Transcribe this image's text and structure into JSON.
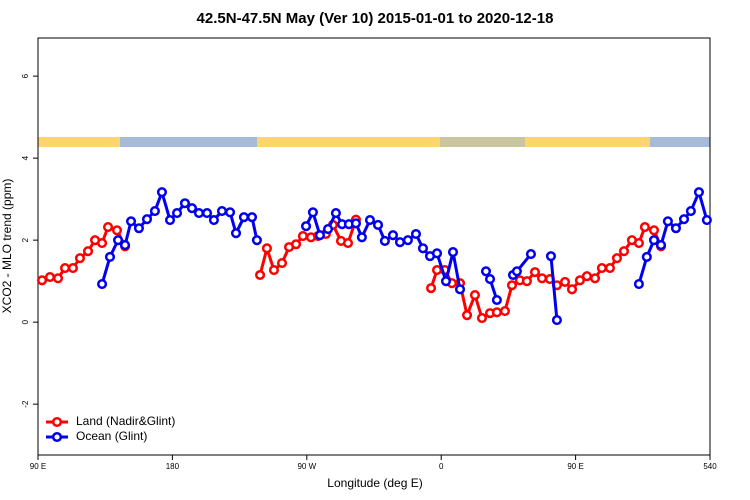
{
  "chart_data": {
    "type": "line",
    "title": "42.5N-47.5N May (Ver 10)   2015-01-01 to 2020-12-18",
    "x_label": "Longitude (deg E)",
    "y_label": "XCO2 - MLO trend (ppm)",
    "xlim": [
      90,
      540
    ],
    "xticks": [
      {
        "value": 90,
        "label": "90 E"
      },
      180,
      {
        "value": 270,
        "label": "90 W"
      },
      {
        "value": 360,
        "label": "0"
      },
      {
        "value": 450,
        "label": "90 E"
      },
      540
    ],
    "ylim": [
      -3.24,
      6.93
    ],
    "yticks": [
      -2,
      0,
      2,
      4,
      6
    ],
    "legend": "bottom-left",
    "series": [
      {
        "name": "Land (Nadir&Glint)",
        "color": "#ff0000",
        "x": [
          92.7,
          98.0,
          103.4,
          108.1,
          113.4,
          118.1,
          123.5,
          128.2,
          132.9,
          136.9,
          142.9,
          148.3,
          null,
          238.7,
          243.3,
          248.0,
          253.4,
          258.1,
          262.8,
          267.4,
          272.8,
          277.5,
          282.8,
          287.5,
          292.9,
          297.6,
          302.9,
          null,
          353.2,
          357.2,
          362.5,
          367.2,
          372.6,
          377.3,
          382.6,
          387.3,
          392.7,
          397.3,
          402.7,
          407.4,
          412.7,
          417.4,
          422.8,
          427.5,
          432.8,
          437.5,
          442.9,
          447.6,
          452.9,
          457.6,
          463.0,
          467.6,
          473.0,
          477.7,
          482.4,
          487.7,
          492.4,
          496.4,
          502.5,
          507.2
        ],
        "values": [
          1.02,
          1.1,
          1.07,
          1.32,
          1.32,
          1.56,
          1.73,
          2.0,
          1.93,
          2.32,
          2.24,
          1.85,
          null,
          1.15,
          1.8,
          1.27,
          1.44,
          1.83,
          1.9,
          2.1,
          2.07,
          2.1,
          2.15,
          2.37,
          1.98,
          1.93,
          2.5,
          null,
          0.83,
          1.27,
          1.27,
          0.95,
          0.95,
          0.17,
          0.66,
          0.1,
          0.22,
          0.24,
          0.27,
          0.9,
          1.02,
          1.0,
          1.22,
          1.07,
          1.05,
          0.9,
          0.98,
          0.8,
          1.02,
          1.12,
          1.07,
          1.32,
          1.32,
          1.56,
          1.73,
          2.0,
          1.93,
          2.32,
          2.24,
          1.85
        ]
      },
      {
        "name": "Ocean (Glint)",
        "color": "#0000ee",
        "x": [
          132.9,
          138.2,
          143.6,
          148.3,
          152.3,
          157.6,
          163.0,
          168.3,
          173.0,
          178.4,
          183.1,
          188.4,
          193.1,
          197.8,
          203.2,
          207.8,
          213.2,
          218.6,
          222.6,
          227.9,
          233.3,
          236.6,
          null,
          269.5,
          274.1,
          278.8,
          284.2,
          289.5,
          293.6,
          298.2,
          302.9,
          306.9,
          312.3,
          317.7,
          322.3,
          327.7,
          332.4,
          337.7,
          343.1,
          347.8,
          352.5,
          357.2,
          363.2,
          367.9,
          372.6,
          null,
          390.0,
          392.7,
          397.3,
          null,
          408.1,
          410.7,
          420.1,
          null,
          433.5,
          437.5,
          null,
          492.4,
          497.7,
          502.5,
          507.2,
          511.8,
          517.2,
          522.6,
          527.2,
          532.6,
          537.9
        ],
        "values": [
          0.93,
          1.59,
          2.0,
          1.88,
          2.46,
          2.29,
          2.51,
          2.71,
          3.17,
          2.49,
          2.66,
          2.9,
          2.78,
          2.66,
          2.66,
          2.49,
          2.71,
          2.68,
          2.17,
          2.56,
          2.56,
          2.0,
          null,
          2.34,
          2.68,
          2.12,
          2.27,
          2.66,
          2.39,
          2.39,
          2.41,
          2.07,
          2.49,
          2.37,
          1.98,
          2.12,
          1.95,
          2.0,
          2.15,
          1.8,
          1.61,
          1.68,
          1.0,
          1.71,
          0.8,
          null,
          1.24,
          1.05,
          0.54,
          null,
          1.15,
          1.24,
          1.66,
          null,
          1.61,
          0.05,
          null,
          0.93,
          1.59,
          2.0,
          1.88,
          2.46,
          2.29,
          2.51,
          2.71,
          3.17,
          2.49
        ]
      }
    ]
  }
}
